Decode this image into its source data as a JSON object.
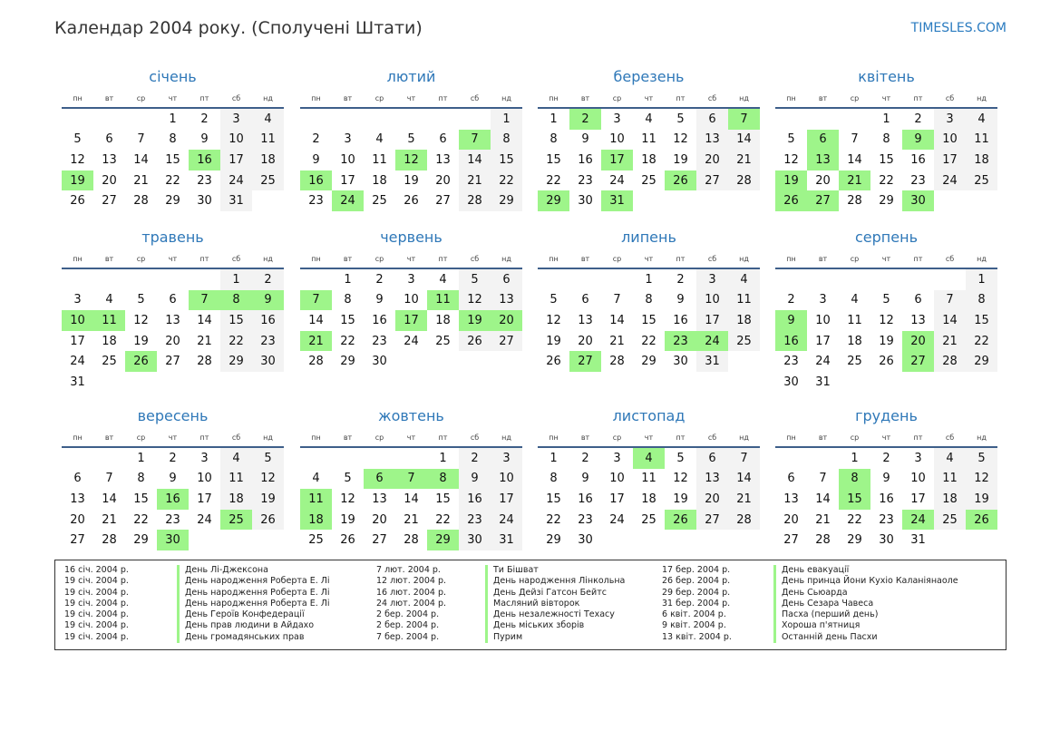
{
  "header": {
    "title": "Календар 2004 року. (Сполучені Штати)",
    "brand": "TIMESLES.COM"
  },
  "weekdays": [
    "пн",
    "вт",
    "ср",
    "чт",
    "пт",
    "сб",
    "нд"
  ],
  "colors": {
    "highlight": "#9ef58a",
    "weekend": "#f3f3f3",
    "accent": "#2f78b8"
  },
  "months": [
    {
      "name": "січень",
      "start": 3,
      "days": 31,
      "holidays": [
        16,
        19
      ]
    },
    {
      "name": "лютий",
      "start": 6,
      "days": 29,
      "holidays": [
        7,
        12,
        16,
        24
      ]
    },
    {
      "name": "березень",
      "start": 0,
      "days": 31,
      "holidays": [
        2,
        7,
        17,
        26,
        29,
        31
      ]
    },
    {
      "name": "квітень",
      "start": 3,
      "days": 30,
      "holidays": [
        6,
        9,
        13,
        19,
        21,
        26,
        27,
        30
      ]
    },
    {
      "name": "травень",
      "start": 5,
      "days": 31,
      "holidays": [
        7,
        8,
        9,
        10,
        11,
        26
      ]
    },
    {
      "name": "червень",
      "start": 1,
      "days": 30,
      "holidays": [
        7,
        11,
        17,
        19,
        20,
        21
      ]
    },
    {
      "name": "липень",
      "start": 3,
      "days": 31,
      "holidays": [
        23,
        24,
        27
      ]
    },
    {
      "name": "серпень",
      "start": 6,
      "days": 31,
      "holidays": [
        9,
        16,
        20,
        27
      ]
    },
    {
      "name": "вересень",
      "start": 2,
      "days": 30,
      "holidays": [
        16,
        25,
        30
      ]
    },
    {
      "name": "жовтень",
      "start": 4,
      "days": 31,
      "holidays": [
        6,
        7,
        8,
        11,
        18,
        29
      ]
    },
    {
      "name": "листопад",
      "start": 0,
      "days": 30,
      "holidays": [
        4,
        26
      ]
    },
    {
      "name": "грудень",
      "start": 2,
      "days": 31,
      "holidays": [
        8,
        15,
        24,
        26
      ]
    }
  ],
  "legend": [
    [
      {
        "date": "16 січ. 2004 р.",
        "name": "День Лі-Джексона"
      },
      {
        "date": "19 січ. 2004 р.",
        "name": "День народження Роберта Е. Лі"
      },
      {
        "date": "19 січ. 2004 р.",
        "name": "День народження Роберта Е. Лі"
      },
      {
        "date": "19 січ. 2004 р.",
        "name": "День народження Роберта Е. Лі"
      },
      {
        "date": "19 січ. 2004 р.",
        "name": "День Героїв Конфедерації"
      },
      {
        "date": "19 січ. 2004 р.",
        "name": "День прав людини в Айдахо"
      },
      {
        "date": "19 січ. 2004 р.",
        "name": "День громадянських прав"
      }
    ],
    [
      {
        "date": "7 лют. 2004 р.",
        "name": "Ти Бішват"
      },
      {
        "date": "12 лют. 2004 р.",
        "name": "День народження Лінкольна"
      },
      {
        "date": "16 лют. 2004 р.",
        "name": "День Дейзі Гатсон Бейтс"
      },
      {
        "date": "24 лют. 2004 р.",
        "name": "Масляний вівторок"
      },
      {
        "date": "2 бер. 2004 р.",
        "name": "День незалежності Техасу"
      },
      {
        "date": "2 бер. 2004 р.",
        "name": "День міських зборів"
      },
      {
        "date": "7 бер. 2004 р.",
        "name": "Пурим"
      }
    ],
    [
      {
        "date": "17 бер. 2004 р.",
        "name": "День евакуації"
      },
      {
        "date": "26 бер. 2004 р.",
        "name": "День принца Йони Кухіо Каланіянаоле"
      },
      {
        "date": "29 бер. 2004 р.",
        "name": "День Сьюарда"
      },
      {
        "date": "31 бер. 2004 р.",
        "name": "День Сезара Чавеса"
      },
      {
        "date": "6 квіт. 2004 р.",
        "name": "Пасха (перший день)"
      },
      {
        "date": "9 квіт. 2004 р.",
        "name": "Хороша п'ятниця"
      },
      {
        "date": "13 квіт. 2004 р.",
        "name": "Останній день Пасхи"
      }
    ]
  ]
}
